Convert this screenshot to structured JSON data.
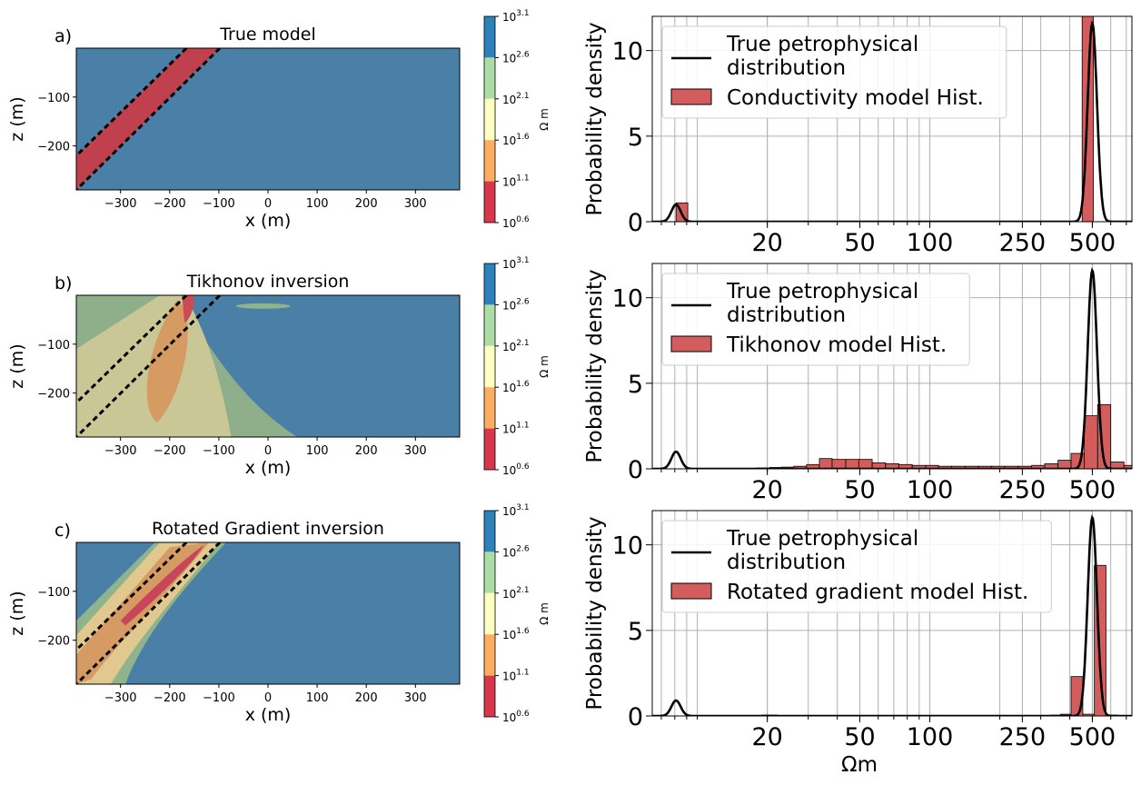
{
  "colors": {
    "bands": [
      "#d53e4f",
      "#fc8d59",
      "#fee08b",
      "#ffffbf",
      "#a6d96a",
      "#3288bd"
    ],
    "cbar_bands": [
      "#d7374a",
      "#fdae61",
      "#ffffbf",
      "#abdda4",
      "#2b83ba"
    ],
    "background_field": "#4a7fa8",
    "dyke_fill": "#c0404e",
    "hist_fill": "#d35d5d",
    "hist_edge": "#000000",
    "true_line": "#000000",
    "grid": "#b0b0b0"
  },
  "chart_data": [
    {
      "type": "heatmap",
      "panel_label": "a)",
      "title": "True model",
      "xlabel": "x (m)",
      "ylabel": "z (m)",
      "xlim": [
        -390,
        390
      ],
      "ylim": [
        -290,
        0
      ],
      "xticks": [
        -300,
        -200,
        -100,
        0,
        100,
        200,
        300
      ],
      "yticks": [
        -100,
        -200
      ],
      "colorbar": {
        "label": "Ω m",
        "log10_range": [
          0.6,
          3.1
        ],
        "tick_exponents": [
          "0.6",
          "1.1",
          "1.6",
          "2.1",
          "2.6",
          "3.1"
        ],
        "tick_base": "10"
      },
      "dyke": {
        "top_x": [
          -166,
          -98
        ],
        "bottom_x": [
          -390,
          -390
        ],
        "bottom_z": [
          -220,
          -290
        ]
      },
      "background_log10": 2.7,
      "dyke_log10": 0.9
    },
    {
      "type": "heatmap",
      "panel_label": "b)",
      "title": "Tikhonov inversion",
      "xlabel": "x (m)",
      "ylabel": "z (m)",
      "xlim": [
        -390,
        390
      ],
      "ylim": [
        -290,
        0
      ],
      "xticks": [
        -300,
        -200,
        -100,
        0,
        100,
        200,
        300
      ],
      "yticks": [
        -100,
        -200
      ],
      "colorbar": {
        "label": "Ω m",
        "log10_range": [
          0.6,
          3.1
        ],
        "tick_exponents": [
          "0.6",
          "1.1",
          "1.6",
          "2.1",
          "2.6",
          "3.1"
        ],
        "tick_base": "10"
      },
      "dyke": {
        "top_x": [
          -166,
          -98
        ],
        "bottom_x": [
          -390,
          -390
        ],
        "bottom_z": [
          -220,
          -290
        ]
      }
    },
    {
      "type": "heatmap",
      "panel_label": "c)",
      "title": "Rotated Gradient inversion",
      "xlabel": "x (m)",
      "ylabel": "z (m)",
      "xlim": [
        -390,
        390
      ],
      "ylim": [
        -290,
        0
      ],
      "xticks": [
        -300,
        -200,
        -100,
        0,
        100,
        200,
        300
      ],
      "yticks": [
        -100,
        -200
      ],
      "colorbar": {
        "label": "Ω m",
        "log10_range": [
          0.6,
          3.1
        ],
        "tick_exponents": [
          "0.6",
          "1.1",
          "1.6",
          "2.1",
          "2.6",
          "3.1"
        ],
        "tick_base": "10"
      },
      "dyke": {
        "top_x": [
          -166,
          -98
        ],
        "bottom_x": [
          -390,
          -390
        ],
        "bottom_z": [
          -220,
          -290
        ]
      }
    },
    {
      "type": "bar",
      "xscale": "log",
      "xlim": [
        6.4,
        740
      ],
      "ylim": [
        0,
        12
      ],
      "ylabel": "Probability density",
      "xlabel": "",
      "xticks": [
        20,
        50,
        100,
        250,
        500
      ],
      "yticks": [
        0,
        5,
        10
      ],
      "grid": true,
      "legend": {
        "placement": "top-left",
        "line_label": "True petrophysical\ndistribution",
        "bar_label": "Conductivity model Hist."
      },
      "true_distribution": {
        "peaks": [
          {
            "center": 8.1,
            "height": 1.0
          },
          {
            "center": 500,
            "height": 11.6
          }
        ]
      },
      "bins": [
        {
          "x0": 8.1,
          "x1": 9.1,
          "h": 1.1
        },
        {
          "x0": 452,
          "x1": 505,
          "h": 12.5
        }
      ]
    },
    {
      "type": "bar",
      "xscale": "log",
      "xlim": [
        6.4,
        740
      ],
      "ylim": [
        0,
        12
      ],
      "ylabel": "Probability density",
      "xlabel": "",
      "xticks": [
        20,
        50,
        100,
        250,
        500
      ],
      "yticks": [
        0,
        5,
        10
      ],
      "grid": true,
      "legend": {
        "placement": "top-left",
        "line_label": "True petrophysical\ndistribution",
        "bar_label": "Tikhonov model Hist."
      },
      "true_distribution": {
        "peaks": [
          {
            "center": 8.1,
            "height": 1.0
          },
          {
            "center": 500,
            "height": 11.6
          }
        ]
      },
      "bins": [
        {
          "x0": 18.0,
          "x1": 20.5,
          "h": 0.05
        },
        {
          "x0": 20.5,
          "x1": 23.0,
          "h": 0.08
        },
        {
          "x0": 23.0,
          "x1": 26.0,
          "h": 0.1
        },
        {
          "x0": 26.0,
          "x1": 29.5,
          "h": 0.15
        },
        {
          "x0": 29.5,
          "x1": 33.5,
          "h": 0.25
        },
        {
          "x0": 33.5,
          "x1": 38.0,
          "h": 0.6
        },
        {
          "x0": 38.0,
          "x1": 43.5,
          "h": 0.55
        },
        {
          "x0": 43.5,
          "x1": 49.5,
          "h": 0.55
        },
        {
          "x0": 49.5,
          "x1": 56.5,
          "h": 0.55
        },
        {
          "x0": 56.5,
          "x1": 64.5,
          "h": 0.35
        },
        {
          "x0": 64.5,
          "x1": 73.5,
          "h": 0.3
        },
        {
          "x0": 73.5,
          "x1": 84.0,
          "h": 0.25
        },
        {
          "x0": 84.0,
          "x1": 96.0,
          "h": 0.2
        },
        {
          "x0": 96.0,
          "x1": 109.0,
          "h": 0.2
        },
        {
          "x0": 109.0,
          "x1": 124.0,
          "h": 0.15
        },
        {
          "x0": 124.0,
          "x1": 142.0,
          "h": 0.15
        },
        {
          "x0": 142.0,
          "x1": 162.0,
          "h": 0.15
        },
        {
          "x0": 162.0,
          "x1": 184.0,
          "h": 0.15
        },
        {
          "x0": 184.0,
          "x1": 210.0,
          "h": 0.15
        },
        {
          "x0": 210.0,
          "x1": 240.0,
          "h": 0.15
        },
        {
          "x0": 240.0,
          "x1": 274.0,
          "h": 0.15
        },
        {
          "x0": 274.0,
          "x1": 312.0,
          "h": 0.2
        },
        {
          "x0": 312.0,
          "x1": 356.0,
          "h": 0.3
        },
        {
          "x0": 356.0,
          "x1": 405.0,
          "h": 0.5
        },
        {
          "x0": 405.0,
          "x1": 462.0,
          "h": 0.9
        },
        {
          "x0": 462.0,
          "x1": 527.0,
          "h": 3.1
        },
        {
          "x0": 527.0,
          "x1": 600.0,
          "h": 3.75
        },
        {
          "x0": 600.0,
          "x1": 684.0,
          "h": 0.4
        },
        {
          "x0": 684.0,
          "x1": 740.0,
          "h": 0.2
        }
      ]
    },
    {
      "type": "bar",
      "xscale": "log",
      "xlim": [
        6.4,
        740
      ],
      "ylim": [
        0,
        12
      ],
      "ylabel": "Probability density",
      "xlabel": "Ωm",
      "xticks": [
        20,
        50,
        100,
        250,
        500
      ],
      "yticks": [
        0,
        5,
        10
      ],
      "grid": true,
      "legend": {
        "placement": "top-left",
        "line_label": "True petrophysical\ndistribution",
        "bar_label": "Rotated gradient model Hist."
      },
      "true_distribution": {
        "peaks": [
          {
            "center": 8.1,
            "height": 0.9
          },
          {
            "center": 500,
            "height": 11.6
          }
        ]
      },
      "bins": [
        {
          "x0": 19.0,
          "x1": 22.0,
          "h": 0.05
        },
        {
          "x0": 330.0,
          "x1": 365.0,
          "h": 0.05
        },
        {
          "x0": 365.0,
          "x1": 405.0,
          "h": 0.1
        },
        {
          "x0": 405.0,
          "x1": 455.0,
          "h": 2.3
        },
        {
          "x0": 455.0,
          "x1": 510.0,
          "h": 0.1
        },
        {
          "x0": 510.0,
          "x1": 572.0,
          "h": 8.8
        },
        {
          "x0": 572.0,
          "x1": 640.0,
          "h": 0.05
        }
      ]
    }
  ]
}
